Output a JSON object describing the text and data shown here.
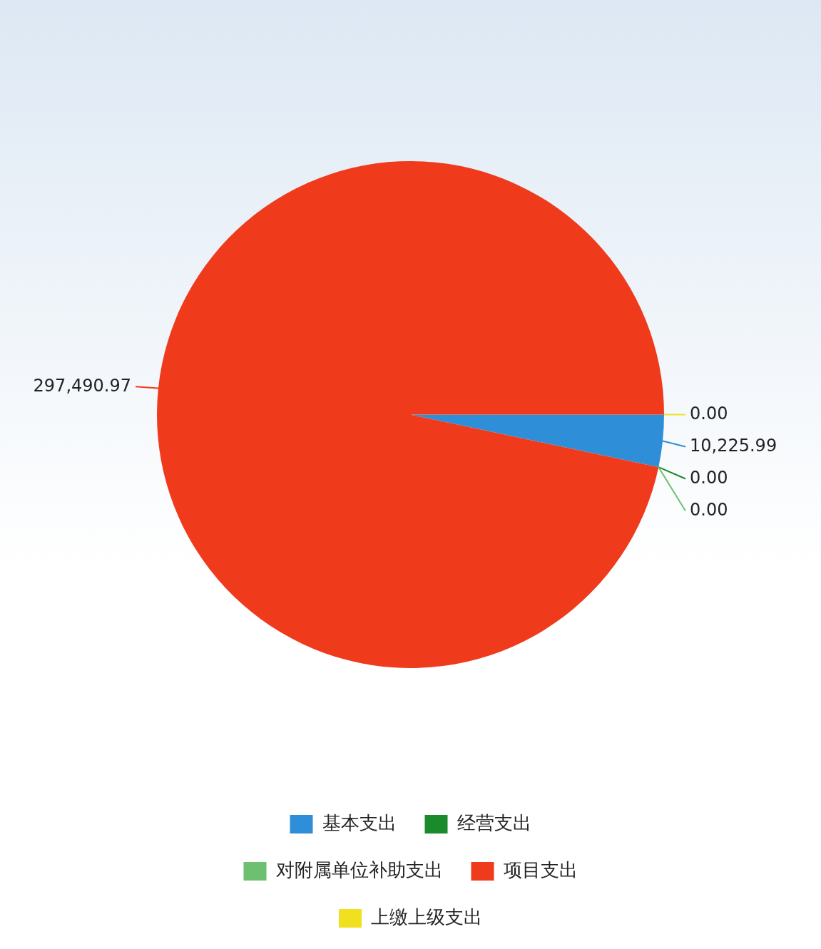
{
  "chart_data": {
    "type": "pie",
    "categories": [
      "基本支出",
      "经营支出",
      "对附属单位补助支出",
      "项目支出",
      "上缴上级支出"
    ],
    "values": [
      10225.99,
      0.0,
      0.0,
      297490.97,
      0.0
    ],
    "value_labels": [
      "10,225.99",
      "0.00",
      "0.00",
      "297,490.97",
      "0.00"
    ],
    "colors": [
      "#2e8fd8",
      "#1a8a2a",
      "#6cc070",
      "#f03a1c",
      "#f0e020"
    ],
    "legend": "bottom"
  }
}
